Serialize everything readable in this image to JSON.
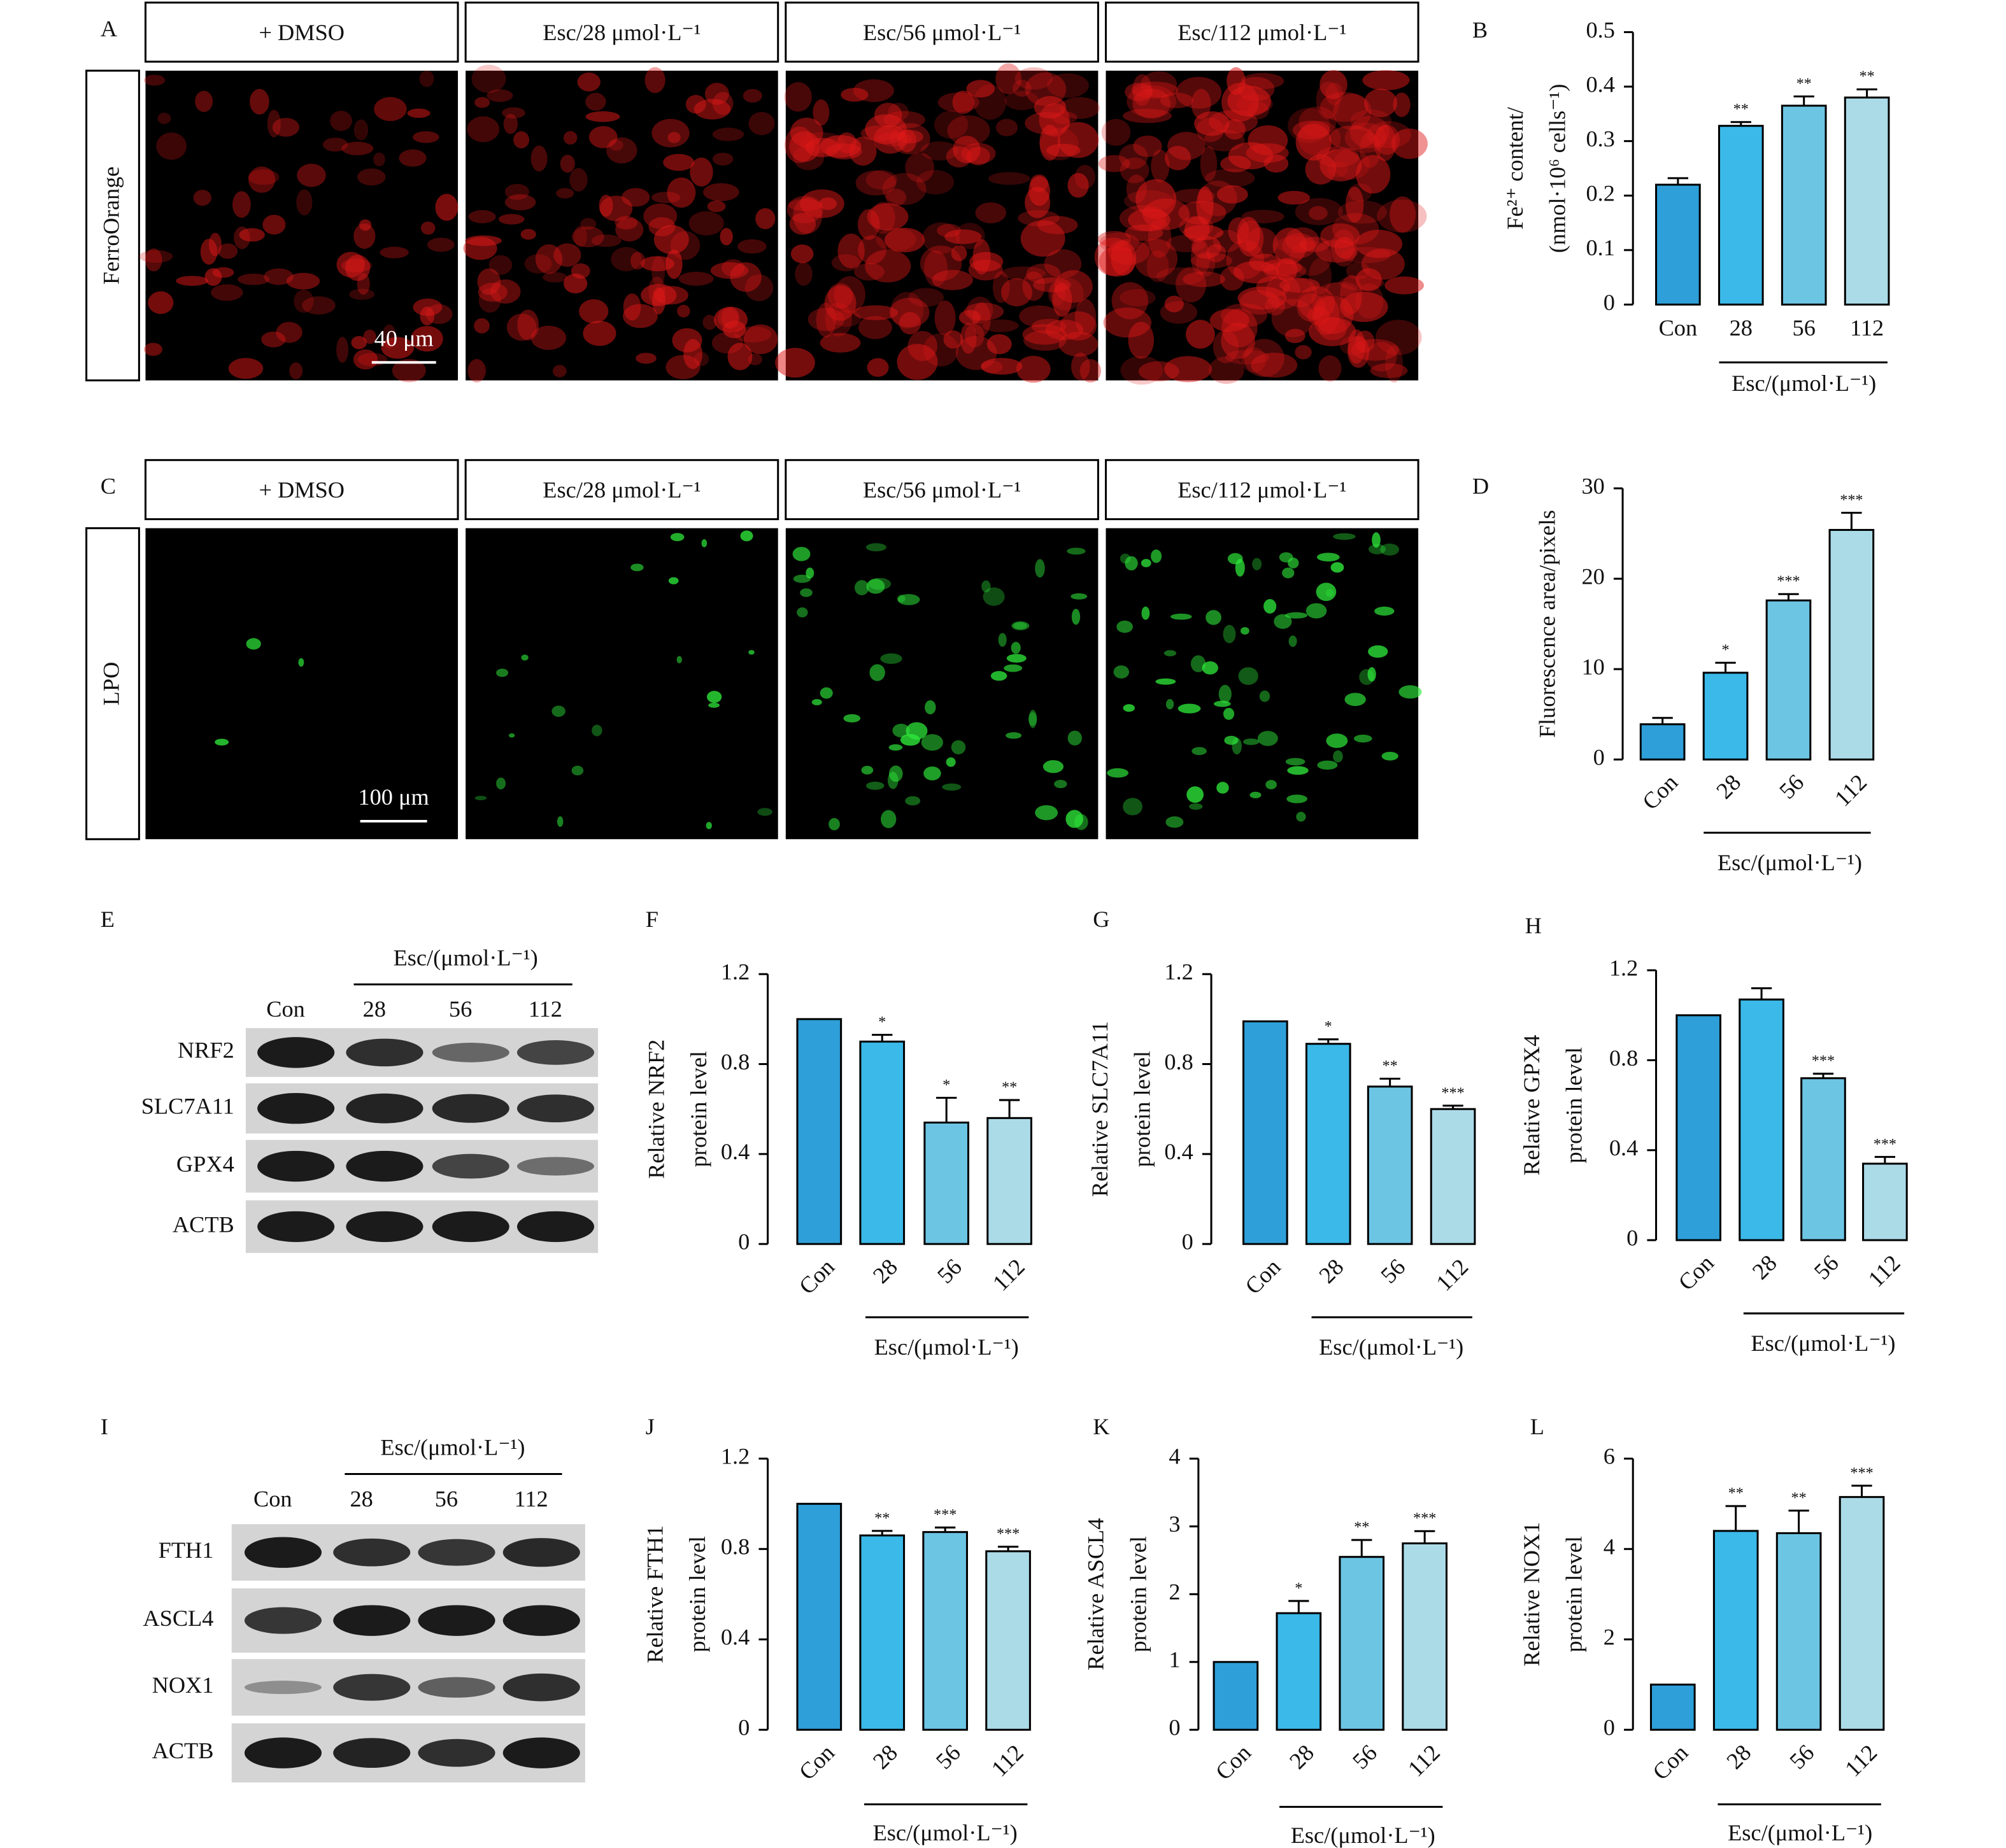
{
  "chart_data": [
    {
      "type": "bar",
      "panel": "B",
      "ylabel": [
        "Fe²⁺ content/",
        "(nmol·10⁶ cells⁻¹)"
      ],
      "categories": [
        "Con",
        "28",
        "56",
        "112"
      ],
      "xlabel": "Esc/(μmol·L⁻¹)",
      "values": [
        0.22,
        0.328,
        0.365,
        0.38
      ],
      "errors": [
        0.012,
        0.007,
        0.017,
        0.015
      ],
      "significance": [
        null,
        "**",
        "**",
        "**"
      ],
      "colors": [
        "#2e9fd8",
        "#3bb9e8",
        "#6dc5e4",
        "#acdbe8"
      ],
      "ylim": [
        0,
        0.5
      ],
      "yticks": [
        0,
        0.1,
        0.2,
        0.3,
        0.4,
        0.5
      ],
      "rotate_labels": false
    },
    {
      "type": "bar",
      "panel": "D",
      "ylabel": [
        "Fluorescence area/pixels"
      ],
      "categories": [
        "Con",
        "28",
        "56",
        "112"
      ],
      "xlabel": "Esc/(μmol·L⁻¹)",
      "values": [
        3.9,
        9.6,
        17.6,
        25.4
      ],
      "errors": [
        0.7,
        1.1,
        0.7,
        1.9
      ],
      "significance": [
        null,
        "*",
        "***",
        "***"
      ],
      "colors": [
        "#2e9fd8",
        "#3bb9e8",
        "#6dc5e4",
        "#acdbe8"
      ],
      "ylim": [
        0,
        30
      ],
      "yticks": [
        0,
        10,
        20,
        30
      ],
      "rotate_labels": true
    },
    {
      "type": "bar",
      "panel": "F",
      "ylabel": [
        "Relative NRF2",
        "protein level"
      ],
      "categories": [
        "Con",
        "28",
        "56",
        "112"
      ],
      "xlabel": "Esc/(μmol·L⁻¹)",
      "values": [
        1.0,
        0.9,
        0.54,
        0.56
      ],
      "errors": [
        null,
        0.03,
        0.11,
        0.08
      ],
      "significance": [
        null,
        "*",
        "*",
        "**"
      ],
      "colors": [
        "#2e9fd8",
        "#3bb9e8",
        "#6dc5e4",
        "#acdbe8"
      ],
      "ylim": [
        0,
        1.2
      ],
      "yticks": [
        0,
        0.4,
        0.8,
        1.2
      ],
      "rotate_labels": true
    },
    {
      "type": "bar",
      "panel": "G",
      "ylabel": [
        "Relative SLC7A11",
        "protein level"
      ],
      "categories": [
        "Con",
        "28",
        "56",
        "112"
      ],
      "xlabel": "Esc/(μmol·L⁻¹)",
      "values": [
        0.99,
        0.89,
        0.7,
        0.6
      ],
      "errors": [
        null,
        0.02,
        0.035,
        0.015
      ],
      "significance": [
        null,
        "*",
        "**",
        "***"
      ],
      "colors": [
        "#2e9fd8",
        "#3bb9e8",
        "#6dc5e4",
        "#acdbe8"
      ],
      "ylim": [
        0,
        1.2
      ],
      "yticks": [
        0,
        0.4,
        0.8,
        1.2
      ],
      "rotate_labels": true
    },
    {
      "type": "bar",
      "panel": "H",
      "ylabel": [
        "Relative GPX4",
        "protein level"
      ],
      "categories": [
        "Con",
        "28",
        "56",
        "112"
      ],
      "xlabel": "Esc/(μmol·L⁻¹)",
      "values": [
        1.0,
        1.07,
        0.72,
        0.34
      ],
      "errors": [
        null,
        0.05,
        0.02,
        0.03
      ],
      "significance": [
        null,
        null,
        "***",
        "***"
      ],
      "colors": [
        "#2e9fd8",
        "#3bb9e8",
        "#6dc5e4",
        "#acdbe8"
      ],
      "ylim": [
        0,
        1.2
      ],
      "yticks": [
        0,
        0.4,
        0.8,
        1.2
      ],
      "rotate_labels": true
    },
    {
      "type": "bar",
      "panel": "J",
      "ylabel": [
        "Relative FTH1",
        "protein level"
      ],
      "categories": [
        "Con",
        "28",
        "56",
        "112"
      ],
      "xlabel": "Esc/(μmol·L⁻¹)",
      "values": [
        1.0,
        0.86,
        0.875,
        0.79
      ],
      "errors": [
        null,
        0.02,
        0.02,
        0.02
      ],
      "significance": [
        null,
        "**",
        "***",
        "***"
      ],
      "colors": [
        "#2e9fd8",
        "#3bb9e8",
        "#6dc5e4",
        "#acdbe8"
      ],
      "ylim": [
        0,
        1.2
      ],
      "yticks": [
        0,
        0.4,
        0.8,
        1.2
      ],
      "rotate_labels": true
    },
    {
      "type": "bar",
      "panel": "K",
      "ylabel": [
        "Relative ASCL4",
        "protein level"
      ],
      "categories": [
        "Con",
        "28",
        "56",
        "112"
      ],
      "xlabel": "Esc/(μmol·L⁻¹)",
      "values": [
        1.0,
        1.72,
        2.55,
        2.75
      ],
      "errors": [
        null,
        0.18,
        0.25,
        0.18
      ],
      "significance": [
        null,
        "*",
        "**",
        "***"
      ],
      "colors": [
        "#2e9fd8",
        "#3bb9e8",
        "#6dc5e4",
        "#acdbe8"
      ],
      "ylim": [
        0,
        4
      ],
      "yticks": [
        0,
        1,
        2,
        3,
        4
      ],
      "rotate_labels": true
    },
    {
      "type": "bar",
      "panel": "L",
      "ylabel": [
        "Relative NOX1",
        "protein level"
      ],
      "categories": [
        "Con",
        "28",
        "56",
        "112"
      ],
      "xlabel": "Esc/(μmol·L⁻¹)",
      "values": [
        1.0,
        4.4,
        4.35,
        5.15
      ],
      "errors": [
        null,
        0.55,
        0.5,
        0.25
      ],
      "significance": [
        null,
        "**",
        "**",
        "***"
      ],
      "colors": [
        "#2e9fd8",
        "#3bb9e8",
        "#6dc5e4",
        "#acdbe8"
      ],
      "ylim": [
        0,
        6
      ],
      "yticks": [
        0,
        2,
        4,
        6
      ],
      "rotate_labels": true
    }
  ],
  "microscopy": [
    {
      "panel": "A",
      "row_label": "FerroOrange",
      "conditions": [
        "+ DMSO",
        "Esc/28 μmol·L⁻¹",
        "Esc/56 μmol·L⁻¹",
        "Esc/112 μmol·L⁻¹"
      ],
      "scale_bar": "40 μm"
    },
    {
      "panel": "C",
      "row_label": "LPO",
      "conditions": [
        "+ DMSO",
        "Esc/28 μmol·L⁻¹",
        "Esc/56 μmol·L⁻¹",
        "Esc/112 μmol·L⁻¹"
      ],
      "scale_bar": "100 μm"
    }
  ],
  "blots": [
    {
      "panel": "E",
      "group_label": "Esc/(μmol·L⁻¹)",
      "lanes": [
        "Con",
        "28",
        "56",
        "112"
      ],
      "proteins": [
        "NRF2",
        "SLC7A11",
        "GPX4",
        "ACTB"
      ]
    },
    {
      "panel": "I",
      "group_label": "Esc/(μmol·L⁻¹)",
      "lanes": [
        "Con",
        "28",
        "56",
        "112"
      ],
      "proteins": [
        "FTH1",
        "ASCL4",
        "NOX1",
        "ACTB"
      ]
    }
  ]
}
